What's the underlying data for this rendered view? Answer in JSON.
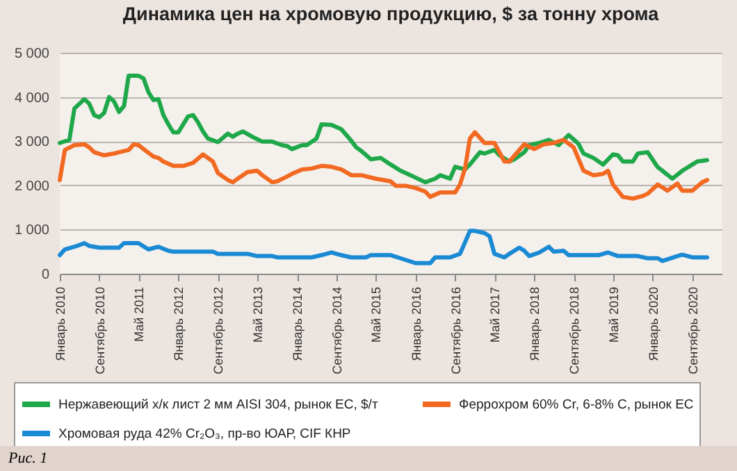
{
  "chart_data": {
    "type": "line",
    "title": "Динамика цен на хромовую продукцию, $ за тонну хрома",
    "annotations": [
      "Рис. 1"
    ],
    "legend": "bottom",
    "grid": "y",
    "line_style": "solid",
    "xlim": [
      "2010-01",
      "2021-03"
    ],
    "xticks": [
      {
        "value": "2010-01",
        "label": "Январь 2010"
      },
      {
        "value": "2010-09",
        "label": "Сентябрь 2010"
      },
      {
        "value": "2011-05",
        "label": "Май 2011"
      },
      {
        "value": "2012-01",
        "label": "Январь 2012"
      },
      {
        "value": "2012-09",
        "label": "Сентябрь 2012"
      },
      {
        "value": "2013-05",
        "label": "Май 2013"
      },
      {
        "value": "2014-01",
        "label": "Январь 2014"
      },
      {
        "value": "2014-09",
        "label": "Сентябрь 2014"
      },
      {
        "value": "2015-05",
        "label": "Май 2015"
      },
      {
        "value": "2016-01",
        "label": "Январь 2016"
      },
      {
        "value": "2016-09",
        "label": "Сентябрь 2016"
      },
      {
        "value": "2017-05",
        "label": "Май 2017"
      },
      {
        "value": "2018-01",
        "label": "Январь 2018"
      },
      {
        "value": "2018-09",
        "label": "Сентябрь 2018"
      },
      {
        "value": "2019-05",
        "label": "Май 2019"
      },
      {
        "value": "2020-01",
        "label": "Январь 2020"
      },
      {
        "value": "2020-09",
        "label": "Сентябрь 2020"
      }
    ],
    "ylim": [
      0,
      5000
    ],
    "yticks": [
      0,
      {
        "value": 1000,
        "label": "1 000"
      },
      {
        "value": 2000,
        "label": "2 000"
      },
      {
        "value": 3000,
        "label": "3 000"
      },
      {
        "value": 4000,
        "label": "4 000"
      },
      {
        "value": 5000,
        "label": "5 000"
      }
    ],
    "series": [
      {
        "name": "Нержавеющий х/к лист 2 мм AISI 304, рынок ЕС, $/т",
        "color": "#1fa84a",
        "x": [
          "2010-01",
          "2010-03",
          "2010-04",
          "2010-06",
          "2010-07",
          "2010-08",
          "2010-09",
          "2010-10",
          "2010-11",
          "2010-12",
          "2011-01",
          "2011-02",
          "2011-03",
          "2011-05",
          "2011-06",
          "2011-07",
          "2011-08",
          "2011-09",
          "2011-10",
          "2011-11",
          "2011-12",
          "2012-01",
          "2012-03",
          "2012-04",
          "2012-05",
          "2012-06",
          "2012-07",
          "2012-09",
          "2012-11",
          "2012-12",
          "2013-01",
          "2013-02",
          "2013-04",
          "2013-06",
          "2013-08",
          "2013-10",
          "2013-11",
          "2013-12",
          "2014-02",
          "2014-03",
          "2014-05",
          "2014-06",
          "2014-08",
          "2014-10",
          "2014-12",
          "2015-01",
          "2015-02",
          "2015-04",
          "2015-06",
          "2015-08",
          "2015-10",
          "2015-12",
          "2016-02",
          "2016-03",
          "2016-05",
          "2016-06",
          "2016-08",
          "2016-09",
          "2016-11",
          "2016-12",
          "2017-02",
          "2017-03",
          "2017-05",
          "2017-06",
          "2017-08",
          "2017-09",
          "2017-11",
          "2017-12",
          "2018-02",
          "2018-04",
          "2018-06",
          "2018-08",
          "2018-10",
          "2018-11",
          "2019-01",
          "2019-03",
          "2019-05",
          "2019-06",
          "2019-07",
          "2019-09",
          "2019-10",
          "2019-12",
          "2020-02",
          "2020-03",
          "2020-05",
          "2020-07",
          "2020-09",
          "2020-10",
          "2020-12"
        ],
        "values": [
          2960,
          3030,
          3740,
          3950,
          3850,
          3590,
          3540,
          3640,
          4000,
          3900,
          3660,
          3800,
          4480,
          4480,
          4420,
          4110,
          3930,
          3950,
          3590,
          3380,
          3200,
          3200,
          3560,
          3590,
          3430,
          3220,
          3060,
          2980,
          3170,
          3100,
          3170,
          3220,
          3100,
          2990,
          2990,
          2910,
          2890,
          2820,
          2910,
          2910,
          3060,
          3380,
          3370,
          3270,
          3010,
          2860,
          2780,
          2590,
          2620,
          2470,
          2330,
          2230,
          2120,
          2070,
          2150,
          2230,
          2150,
          2420,
          2360,
          2470,
          2750,
          2720,
          2800,
          2680,
          2540,
          2590,
          2750,
          2910,
          2960,
          3030,
          2910,
          3140,
          2940,
          2720,
          2620,
          2470,
          2700,
          2680,
          2540,
          2540,
          2720,
          2750,
          2410,
          2330,
          2150,
          2330,
          2470,
          2540,
          2570
        ]
      },
      {
        "name": "Феррохром 60% Cr, 6-8% C, рынок ЕС",
        "color": "#f26a21",
        "x": [
          "2010-01",
          "2010-02",
          "2010-04",
          "2010-06",
          "2010-07",
          "2010-08",
          "2010-10",
          "2010-12",
          "2011-01",
          "2011-03",
          "2011-04",
          "2011-05",
          "2011-06",
          "2011-08",
          "2011-09",
          "2011-10",
          "2011-12",
          "2012-02",
          "2012-04",
          "2012-06",
          "2012-08",
          "2012-09",
          "2012-11",
          "2012-12",
          "2013-01",
          "2013-03",
          "2013-05",
          "2013-06",
          "2013-08",
          "2013-09",
          "2013-11",
          "2013-12",
          "2014-02",
          "2014-04",
          "2014-06",
          "2014-08",
          "2014-10",
          "2014-12",
          "2015-02",
          "2015-05",
          "2015-08",
          "2015-09",
          "2015-11",
          "2016-01",
          "2016-03",
          "2016-04",
          "2016-06",
          "2016-09",
          "2016-10",
          "2016-11",
          "2016-12",
          "2017-01",
          "2017-03",
          "2017-05",
          "2017-07",
          "2017-08",
          "2017-11",
          "2018-01",
          "2018-03",
          "2018-05",
          "2018-07",
          "2018-09",
          "2018-11",
          "2019-01",
          "2019-03",
          "2019-04",
          "2019-05",
          "2019-07",
          "2019-09",
          "2019-11",
          "2019-12",
          "2020-02",
          "2020-04",
          "2020-06",
          "2020-07",
          "2020-09",
          "2020-11",
          "2020-12"
        ],
        "values": [
          2120,
          2800,
          2910,
          2930,
          2860,
          2750,
          2680,
          2720,
          2750,
          2800,
          2930,
          2910,
          2820,
          2650,
          2620,
          2540,
          2440,
          2440,
          2510,
          2700,
          2540,
          2280,
          2120,
          2070,
          2150,
          2300,
          2330,
          2230,
          2070,
          2090,
          2200,
          2260,
          2360,
          2380,
          2440,
          2420,
          2360,
          2230,
          2230,
          2150,
          2090,
          1990,
          1990,
          1940,
          1860,
          1740,
          1840,
          1840,
          2020,
          2380,
          3060,
          3200,
          2960,
          2960,
          2540,
          2540,
          2930,
          2820,
          2930,
          2960,
          3030,
          2860,
          2330,
          2230,
          2260,
          2330,
          2020,
          1740,
          1700,
          1760,
          1810,
          2020,
          1880,
          2040,
          1880,
          1880,
          2070,
          2120
        ]
      },
      {
        "name": "Хромовая руда 42% Cr₂O₃, пр-во ЮАР, CIF КНР",
        "color": "#1a8ad4",
        "x": [
          "2010-01",
          "2010-02",
          "2010-04",
          "2010-06",
          "2010-07",
          "2010-09",
          "2011-01",
          "2011-02",
          "2011-05",
          "2011-07",
          "2011-09",
          "2011-11",
          "2011-12",
          "2012-08",
          "2012-09",
          "2013-03",
          "2013-05",
          "2013-08",
          "2013-09",
          "2014-04",
          "2014-06",
          "2014-08",
          "2014-10",
          "2014-12",
          "2015-03",
          "2015-04",
          "2015-08",
          "2015-10",
          "2016-01",
          "2016-04",
          "2016-05",
          "2016-08",
          "2016-10",
          "2016-11",
          "2016-12",
          "2017-01",
          "2017-03",
          "2017-04",
          "2017-05",
          "2017-07",
          "2017-08",
          "2017-10",
          "2017-11",
          "2017-12",
          "2018-02",
          "2018-04",
          "2018-05",
          "2018-07",
          "2018-08",
          "2019-02",
          "2019-04",
          "2019-06",
          "2019-10",
          "2019-12",
          "2020-02",
          "2020-03",
          "2020-06",
          "2020-07",
          "2020-09",
          "2020-12"
        ],
        "values": [
          420,
          550,
          610,
          690,
          630,
          590,
          590,
          690,
          690,
          550,
          610,
          520,
          500,
          500,
          450,
          450,
          400,
          400,
          370,
          370,
          420,
          480,
          420,
          370,
          370,
          420,
          420,
          350,
          240,
          240,
          370,
          370,
          450,
          710,
          970,
          970,
          920,
          850,
          450,
          370,
          450,
          590,
          520,
          400,
          480,
          610,
          500,
          520,
          420,
          420,
          480,
          400,
          400,
          350,
          350,
          290,
          400,
          430,
          370,
          370
        ]
      }
    ]
  }
}
